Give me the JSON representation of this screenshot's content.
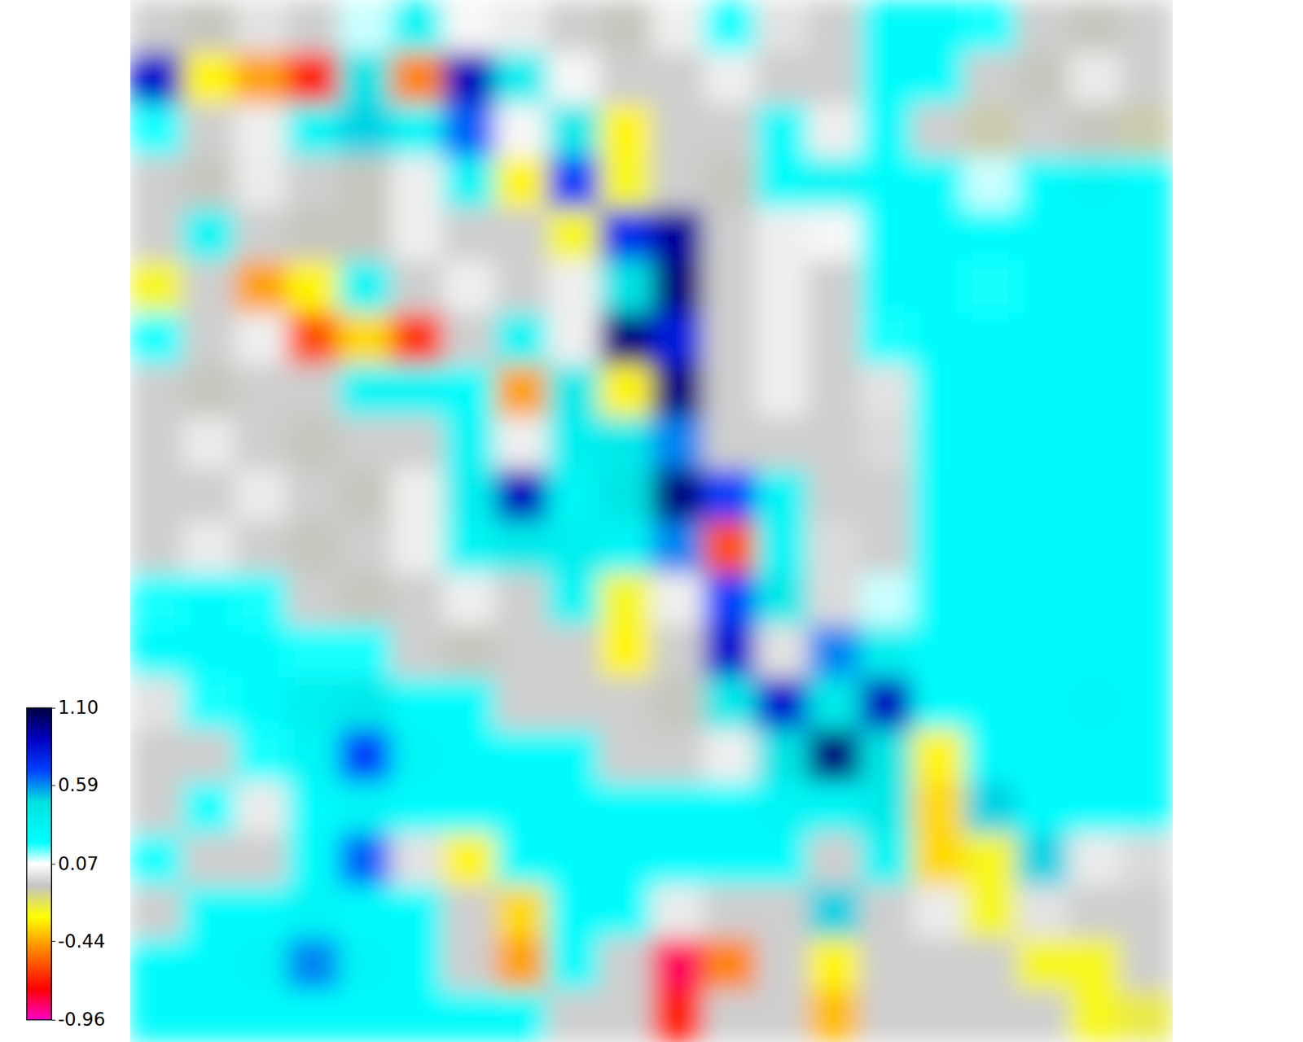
{
  "chart_data": {
    "type": "heatmap",
    "tick_labels": false,
    "colorbar_range": [
      -0.96,
      1.1
    ],
    "colorbar_ticks": [
      {
        "value": 1.1,
        "label": "1.10"
      },
      0.59,
      0.07,
      -0.44,
      -0.96
    ],
    "z": [
      [
        -0.05,
        -0.08,
        0.0,
        -0.05,
        0.1,
        0.3,
        0.05,
        0.02,
        -0.05,
        -0.08,
        0.03,
        0.2,
        0.0,
        -0.05,
        0.25,
        0.25,
        0.2,
        -0.05,
        -0.08,
        -0.05
      ],
      [
        0.85,
        -0.3,
        -0.45,
        -0.7,
        0.45,
        -0.5,
        0.9,
        0.35,
        0.05,
        -0.05,
        -0.05,
        0.03,
        -0.05,
        -0.05,
        0.25,
        0.25,
        -0.05,
        -0.08,
        0.02,
        -0.05
      ],
      [
        0.2,
        -0.05,
        0.03,
        0.3,
        0.5,
        0.3,
        0.65,
        0.05,
        0.4,
        -0.3,
        -0.05,
        -0.05,
        0.25,
        0.03,
        0.25,
        -0.05,
        -0.1,
        -0.05,
        -0.08,
        -0.1
      ],
      [
        -0.05,
        -0.08,
        0.02,
        -0.05,
        -0.08,
        0.03,
        0.3,
        -0.3,
        0.7,
        -0.25,
        -0.05,
        -0.08,
        0.25,
        0.3,
        0.25,
        0.25,
        0.1,
        0.25,
        0.3,
        0.25
      ],
      [
        -0.05,
        0.3,
        -0.05,
        -0.08,
        -0.08,
        0.03,
        -0.05,
        -0.05,
        -0.25,
        0.75,
        0.95,
        -0.05,
        0.03,
        0.05,
        0.25,
        0.25,
        0.25,
        0.25,
        0.25,
        0.25
      ],
      [
        -0.25,
        -0.05,
        -0.45,
        -0.3,
        0.3,
        -0.05,
        0.03,
        -0.05,
        0.03,
        0.45,
        1.0,
        -0.05,
        0.03,
        -0.05,
        0.25,
        0.25,
        0.2,
        0.25,
        0.25,
        0.25
      ],
      [
        0.2,
        -0.05,
        0.03,
        -0.6,
        -0.35,
        -0.65,
        -0.05,
        0.3,
        0.03,
        1.0,
        0.8,
        -0.05,
        0.03,
        -0.05,
        0.2,
        0.25,
        0.25,
        0.25,
        0.25,
        0.25
      ],
      [
        -0.05,
        -0.08,
        -0.05,
        -0.05,
        0.3,
        0.3,
        0.25,
        -0.45,
        0.4,
        -0.3,
        1.0,
        -0.05,
        0.03,
        -0.05,
        0.0,
        0.25,
        0.25,
        0.25,
        0.25,
        0.25
      ],
      [
        -0.05,
        0.02,
        -0.05,
        -0.08,
        -0.05,
        -0.05,
        0.3,
        0.03,
        0.35,
        0.4,
        0.6,
        -0.05,
        -0.05,
        -0.05,
        -0.02,
        0.25,
        0.25,
        0.25,
        0.25,
        0.25
      ],
      [
        -0.05,
        -0.05,
        0.02,
        -0.05,
        -0.08,
        0.03,
        0.35,
        0.9,
        0.3,
        0.45,
        1.0,
        0.7,
        0.3,
        -0.05,
        -0.05,
        0.25,
        0.25,
        0.25,
        0.25,
        0.25
      ],
      [
        -0.05,
        0.02,
        -0.05,
        -0.08,
        -0.05,
        0.03,
        0.3,
        0.4,
        0.35,
        0.3,
        0.6,
        -0.6,
        0.3,
        -0.02,
        -0.05,
        0.25,
        0.25,
        0.25,
        0.25,
        0.25
      ],
      [
        0.2,
        0.25,
        0.2,
        -0.05,
        -0.08,
        -0.05,
        0.03,
        -0.05,
        0.3,
        -0.25,
        0.03,
        0.7,
        0.4,
        -0.02,
        0.1,
        0.25,
        0.25,
        0.25,
        0.25,
        0.25
      ],
      [
        0.25,
        0.25,
        0.25,
        0.2,
        0.2,
        -0.05,
        -0.08,
        -0.05,
        -0.05,
        -0.3,
        -0.05,
        0.85,
        0.0,
        0.6,
        0.35,
        0.25,
        0.25,
        0.25,
        0.25,
        0.25
      ],
      [
        0.0,
        0.2,
        0.25,
        0.35,
        0.4,
        0.25,
        0.25,
        -0.05,
        -0.05,
        -0.05,
        -0.08,
        0.4,
        0.85,
        0.4,
        0.9,
        0.25,
        0.25,
        0.25,
        0.3,
        0.25
      ],
      [
        -0.05,
        -0.05,
        0.2,
        0.3,
        0.7,
        0.3,
        0.25,
        0.25,
        0.25,
        -0.05,
        -0.05,
        0.03,
        0.45,
        1.0,
        0.45,
        -0.3,
        0.25,
        0.25,
        0.25,
        0.25
      ],
      [
        -0.05,
        0.2,
        0.02,
        0.25,
        0.3,
        0.25,
        0.25,
        0.25,
        0.25,
        0.25,
        0.25,
        0.25,
        0.3,
        0.3,
        0.4,
        -0.35,
        0.5,
        0.25,
        0.25,
        0.25
      ],
      [
        0.2,
        -0.05,
        -0.05,
        0.25,
        0.65,
        0.0,
        -0.3,
        0.25,
        0.25,
        0.25,
        0.25,
        0.25,
        0.25,
        -0.05,
        0.3,
        -0.35,
        -0.25,
        0.5,
        0.02,
        -0.02
      ],
      [
        -0.05,
        0.25,
        0.25,
        0.3,
        0.25,
        0.25,
        -0.05,
        -0.35,
        0.25,
        0.25,
        0.02,
        -0.05,
        -0.05,
        0.5,
        -0.05,
        0.02,
        -0.25,
        0.0,
        -0.05,
        -0.05
      ],
      [
        0.25,
        0.25,
        0.3,
        0.6,
        0.3,
        0.25,
        -0.05,
        -0.45,
        0.25,
        -0.05,
        -0.85,
        -0.5,
        -0.05,
        -0.3,
        -0.05,
        -0.05,
        -0.05,
        -0.25,
        -0.25,
        -0.05
      ],
      [
        0.25,
        0.25,
        0.25,
        0.25,
        0.25,
        0.25,
        0.25,
        0.25,
        -0.05,
        -0.05,
        -0.7,
        -0.05,
        -0.05,
        -0.4,
        -0.05,
        -0.05,
        -0.05,
        -0.05,
        -0.25,
        -0.2
      ]
    ]
  }
}
